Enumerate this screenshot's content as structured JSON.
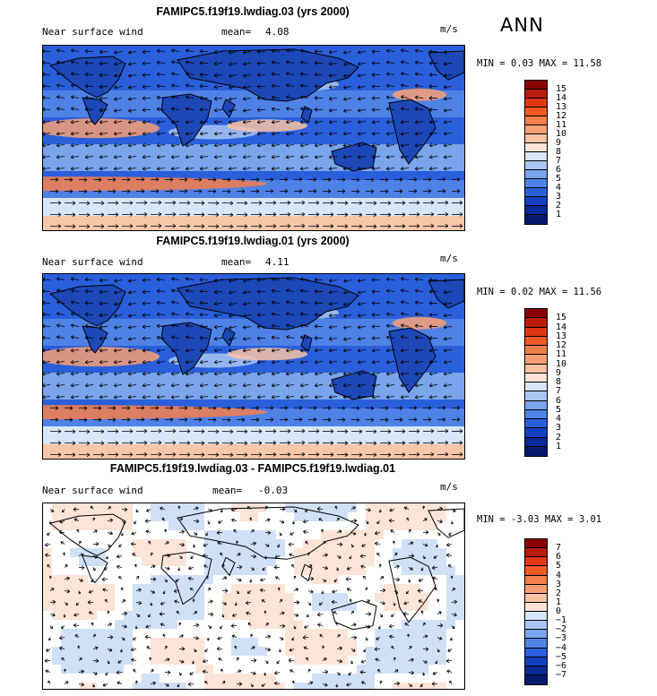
{
  "season_label": "ANN",
  "panels": [
    {
      "title": "FAMIPC5.f19f19.lwdiag.03 (yrs 2000)",
      "variable_label": "Near surface wind",
      "mean_label": "mean=",
      "mean_value": "4.08",
      "units": "m/s",
      "min_label": "MIN =",
      "min_value": "0.03",
      "max_label": "MAX =",
      "max_value": "11.58",
      "colorbar_ticks": [
        "15",
        "14",
        "13",
        "12",
        "11",
        "10",
        "9",
        "8",
        "7",
        "6",
        "5",
        "4",
        "3",
        "2",
        "1"
      ],
      "colorbar_colors": [
        "#8b0000",
        "#b81d0b",
        "#dd3714",
        "#f15a22",
        "#f57e4a",
        "#f79f74",
        "#f9c2a3",
        "#fde4d6",
        "#d7e6fa",
        "#a9c6f3",
        "#7aa4ec",
        "#4f82e6",
        "#2a5fdc",
        "#1440c2",
        "#0a2896",
        "#061a70"
      ]
    },
    {
      "title": "FAMIPC5.f19f19.lwdiag.01 (yrs 2000)",
      "variable_label": "Near surface wind",
      "mean_label": "mean=",
      "mean_value": "4.11",
      "units": "m/s",
      "min_label": "MIN =",
      "min_value": "0.02",
      "max_label": "MAX =",
      "max_value": "11.56",
      "colorbar_ticks": [
        "15",
        "14",
        "13",
        "12",
        "11",
        "10",
        "9",
        "8",
        "7",
        "6",
        "5",
        "4",
        "3",
        "2",
        "1"
      ],
      "colorbar_colors": [
        "#8b0000",
        "#b81d0b",
        "#dd3714",
        "#f15a22",
        "#f57e4a",
        "#f79f74",
        "#f9c2a3",
        "#fde4d6",
        "#d7e6fa",
        "#a9c6f3",
        "#7aa4ec",
        "#4f82e6",
        "#2a5fdc",
        "#1440c2",
        "#0a2896",
        "#061a70"
      ]
    },
    {
      "title": "FAMIPC5.f19f19.lwdiag.03 - FAMIPC5.f19f19.lwdiag.01",
      "variable_label": "Near surface wind",
      "mean_label": "mean=",
      "mean_value": "-0.03",
      "units": "m/s",
      "min_label": "MIN =",
      "min_value": "-3.03",
      "max_label": "MAX =",
      "max_value": "3.01",
      "colorbar_ticks": [
        "7",
        "6",
        "5",
        "4",
        "3",
        "2",
        "1",
        "0",
        "−1",
        "−2",
        "−3",
        "−4",
        "−5",
        "−6",
        "−7"
      ],
      "colorbar_colors": [
        "#8b0000",
        "#b81d0b",
        "#dd3714",
        "#f15a22",
        "#f57e4a",
        "#f79f74",
        "#f9c2a3",
        "#fde4d6",
        "#d7e6fa",
        "#a9c6f3",
        "#7aa4ec",
        "#4f82e6",
        "#2a5fdc",
        "#1440c2",
        "#0a2896",
        "#061a70"
      ]
    }
  ]
}
